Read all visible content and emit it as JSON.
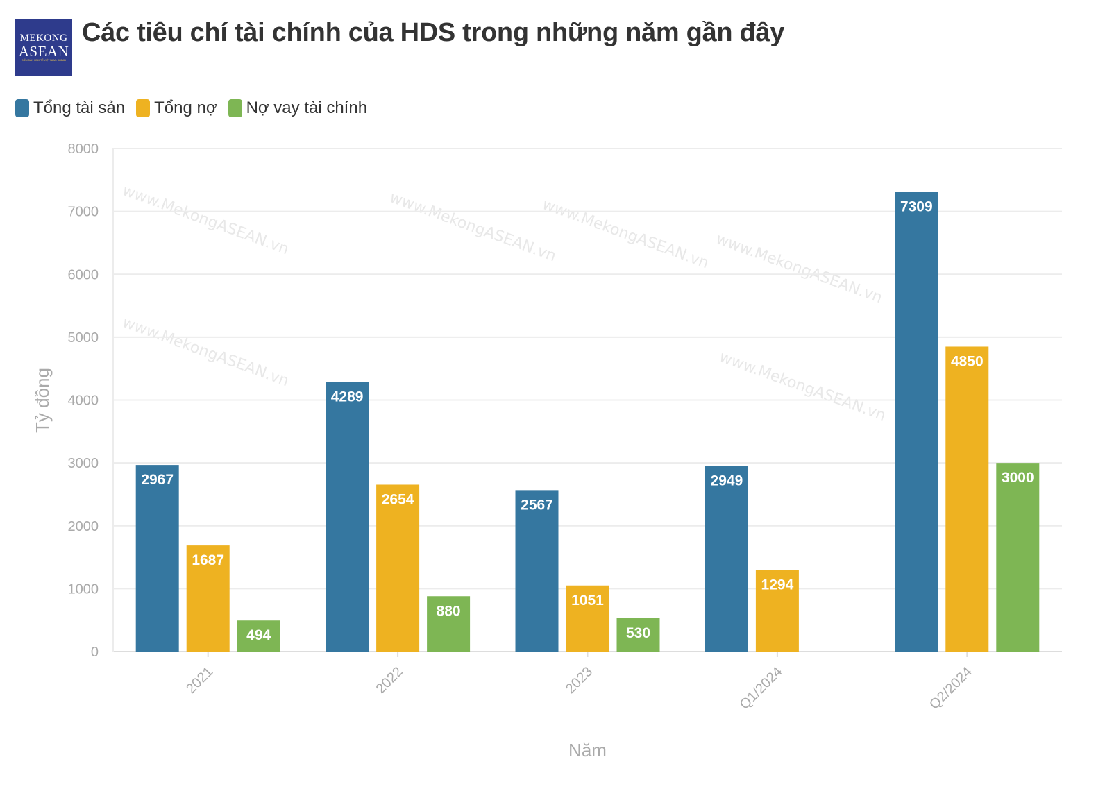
{
  "logo": {
    "line1": "MEKONG",
    "line2": "ASEAN",
    "line3": "DIỄN ĐÀN KINH TẾ VIỆT NAM - ASEAN"
  },
  "watermark": "www.MekongASEAN.vn",
  "chart_data": {
    "type": "bar",
    "title": "Các tiêu chí tài chính của HDS trong những năm gần đây",
    "xlabel": "Năm",
    "ylabel": "Tỷ đồng",
    "ylim": [
      0,
      8000
    ],
    "yticks": [
      0,
      1000,
      2000,
      3000,
      4000,
      5000,
      6000,
      7000,
      8000
    ],
    "grid": true,
    "legend_position": "top-left",
    "categories": [
      "2021",
      "2022",
      "2023",
      "Q1/2024",
      "Q2/2024"
    ],
    "series": [
      {
        "name": "Tổng tài sản",
        "color": "#3577a0",
        "values": [
          2967,
          4289,
          2567,
          2949,
          7309
        ]
      },
      {
        "name": "Tổng nợ",
        "color": "#eeb221",
        "values": [
          1687,
          2654,
          1051,
          1294,
          4850
        ]
      },
      {
        "name": "Nợ vay tài chính",
        "color": "#7eb654",
        "values": [
          494,
          880,
          530,
          null,
          3000
        ]
      }
    ]
  }
}
